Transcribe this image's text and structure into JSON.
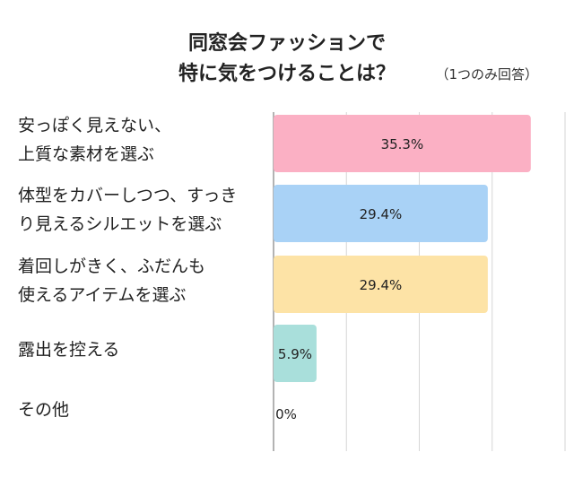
{
  "chart_data": {
    "type": "bar",
    "orientation": "horizontal",
    "title_line1": "同窓会ファッションで",
    "title_line2": "特に気をつけることは？",
    "note": "（1つのみ回答）",
    "categories": [
      [
        "安っぽく見えない、",
        "上質な素材を選ぶ"
      ],
      [
        "体型をカバーしつつ、すっき",
        "り見えるシルエットを選ぶ"
      ],
      [
        "着回しがきく、ふだんも",
        "使えるアイテムを選ぶ"
      ],
      [
        "露出を控える"
      ],
      [
        "その他"
      ]
    ],
    "values": [
      35.3,
      29.4,
      29.4,
      5.9,
      0
    ],
    "value_labels": [
      "35.3%",
      "29.4%",
      "29.4%",
      "5.9%",
      "0%"
    ],
    "colors": [
      "#fbb0c4",
      "#a9d2f6",
      "#fde3a6",
      "#a9dfdb",
      "#cccccc"
    ],
    "xlim": [
      0,
      40
    ],
    "grid": true
  }
}
